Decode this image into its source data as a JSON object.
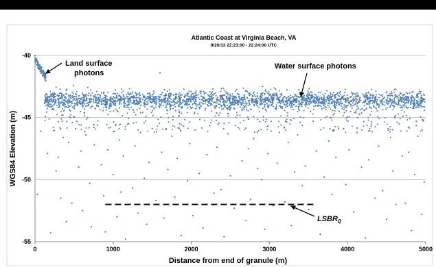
{
  "chart_data": {
    "type": "scatter",
    "title": "Atlantic Coast at Virginia Beach, VA",
    "subtitle": "9/20/13 22:23:00 - 22:24:00 UTC",
    "xlabel": "Distance from end of granule (m)",
    "ylabel": "WGS84  Elevation (m)",
    "xlim": [
      0,
      5000
    ],
    "ylim": [
      -55,
      -40
    ],
    "xticks": [
      "0",
      "1000",
      "2000",
      "3000",
      "4000",
      "5000"
    ],
    "yticks": [
      "-40",
      "-45",
      "-50",
      "-55"
    ],
    "grid": "horizontal",
    "marker_color": "#4a7ebb",
    "annotations": [
      {
        "text_lines": [
          "Land surface",
          "photons"
        ],
        "points_to": {
          "x": 80,
          "y": -41.3
        }
      },
      {
        "text_lines": [
          "Water surface photons"
        ],
        "points_to": {
          "x": 3400,
          "y": -42.8
        }
      },
      {
        "text_main": "LSBR",
        "text_sub": "0",
        "points_to": {
          "x": 3200,
          "y": -52
        }
      }
    ],
    "reference_line": {
      "style": "dashed",
      "color": "#000000",
      "x": [
        900,
        3600
      ],
      "y": -52
    },
    "series": [
      {
        "land_surface": {
          "x": [
            0,
            20,
            40,
            60,
            80,
            100,
            120,
            140
          ],
          "y": [
            -40.0,
            -40.3,
            -40.6,
            -40.9,
            -41.2,
            -41.2,
            -41.6,
            -43.4
          ]
        },
        "water_surface": {
          "x_range": [
            120,
            4990
          ],
          "center": -43.6,
          "spread": 0.35
        },
        "sparse_noise": {
          "x": [
            30,
            75,
            160,
            200,
            235,
            270,
            300,
            330,
            360,
            400,
            430,
            470,
            520,
            560,
            590,
            610,
            650,
            700,
            720,
            760,
            800,
            850,
            880,
            900,
            930,
            960,
            1000,
            1050,
            1080,
            1100,
            1130,
            1160,
            1200,
            1250,
            1280,
            1320,
            1350,
            1400,
            1430,
            1460,
            1500,
            1550,
            1600,
            1620,
            1650,
            1700,
            1750,
            1790,
            1820,
            1870,
            1900,
            1950,
            1980,
            2020,
            2050,
            2100,
            2150,
            2200,
            2250,
            2290,
            2330,
            2380,
            2420,
            2470,
            2500,
            2550,
            2600,
            2650,
            2700,
            2730,
            2760,
            2800,
            2850,
            2900,
            2940,
            2980,
            3020,
            3050,
            3100,
            3150,
            3200,
            3240,
            3280,
            3320,
            3360,
            3420,
            3460,
            3500,
            3560,
            3600,
            3650,
            3700,
            3760,
            3800,
            3850,
            3900,
            3950,
            3980,
            4020,
            4080,
            4120,
            4180,
            4230,
            4270,
            4300,
            4350,
            4400,
            4450,
            4500,
            4550,
            4580,
            4620,
            4660,
            4700,
            4740,
            4780,
            4820,
            4860,
            4900,
            4950,
            4980
          ],
          "y": [
            -51.2,
            -46.1,
            -47.9,
            -54.3,
            -45.8,
            -49.3,
            -48.2,
            -51.5,
            -46.6,
            -53.4,
            -47.0,
            -51.9,
            -45.9,
            -49.0,
            -47.7,
            -52.5,
            -46.4,
            -50.3,
            -53.8,
            -47.2,
            -45.6,
            -48.8,
            -51.3,
            -54.2,
            -47.6,
            -44.1,
            -49.6,
            -53.0,
            -46.8,
            -51.0,
            -48.1,
            -54.8,
            -45.5,
            -50.7,
            -47.3,
            -52.7,
            -46.2,
            -49.9,
            -53.6,
            -48.6,
            -45.9,
            -51.7,
            -41.4,
            -47.8,
            -53.1,
            -49.2,
            -46.5,
            -51.4,
            -48.3,
            -54.5,
            -45.7,
            -50.1,
            -47.1,
            -52.9,
            -46.0,
            -49.5,
            -53.9,
            -48.0,
            -45.4,
            -51.1,
            -47.4,
            -50.8,
            -54.6,
            -46.3,
            -49.7,
            -52.3,
            -45.8,
            -48.5,
            -53.3,
            -47.5,
            -51.6,
            -46.7,
            -49.1,
            -50.0,
            -54.0,
            -47.9,
            -46.1,
            -52.1,
            -48.7,
            -45.6,
            -51.8,
            -47.0,
            -53.7,
            -49.4,
            -46.4,
            -50.5,
            -48.9,
            -52.4,
            -45.3,
            -47.7,
            -54.4,
            -49.8,
            -46.9,
            -51.2,
            -48.2,
            -53.5,
            -45.9,
            -50.4,
            -47.6,
            -52.6,
            -46.2,
            -49.0,
            -54.7,
            -48.4,
            -45.7,
            -51.5,
            -47.3,
            -50.9,
            -53.2,
            -46.6,
            -49.3,
            -52.0,
            -45.5,
            -48.1,
            -51.9,
            -47.8,
            -54.1,
            -49.6,
            -46.5,
            -52.8,
            -50.2
          ]
        }
      }
    ]
  }
}
